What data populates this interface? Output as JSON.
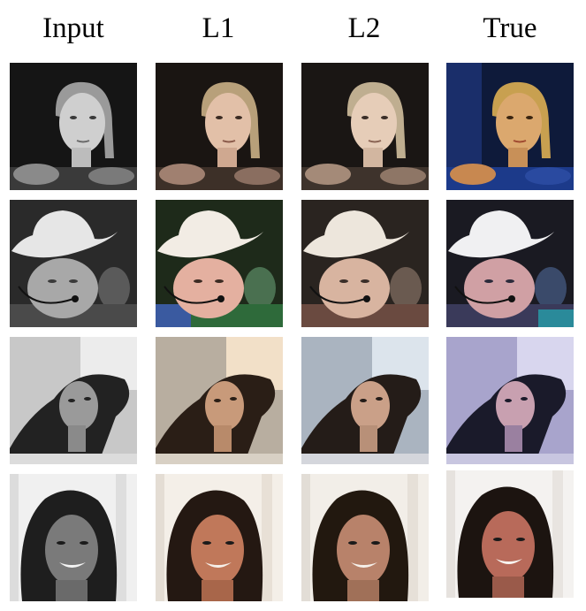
{
  "figure": {
    "columns": [
      {
        "label": "Input"
      },
      {
        "label": "L1"
      },
      {
        "label": "L2"
      },
      {
        "label": "True"
      }
    ],
    "rows": [
      {
        "subject": "woman in water"
      },
      {
        "subject": "man in cowboy hat with headset"
      },
      {
        "subject": "woman with windswept hair"
      },
      {
        "subject": "smiling woman"
      }
    ]
  }
}
